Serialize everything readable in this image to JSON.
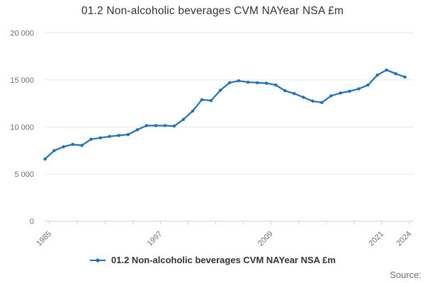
{
  "title": "01.2 Non-alcoholic beverages CVM NAYear NSA £m",
  "source_label": "Source:",
  "legend": {
    "label": "01.2 Non-alcoholic beverages CVM NAYear NSA £m"
  },
  "colors": {
    "line": "#1d70b8",
    "grid": "#e6e6e6",
    "axis": "#ccd6eb",
    "axis_label": "#6e6e6e",
    "text": "#333333"
  },
  "chart_data": {
    "type": "line",
    "title": "01.2 Non-alcoholic beverages CVM NAYear NSA £m",
    "xlabel": "",
    "ylabel": "",
    "x": [
      1985,
      1986,
      1987,
      1988,
      1989,
      1990,
      1991,
      1992,
      1993,
      1994,
      1995,
      1996,
      1997,
      1998,
      1999,
      2000,
      2001,
      2002,
      2003,
      2004,
      2005,
      2006,
      2007,
      2008,
      2009,
      2010,
      2011,
      2012,
      2013,
      2014,
      2015,
      2016,
      2017,
      2018,
      2019,
      2020,
      2021,
      2022,
      2023,
      2024
    ],
    "series": [
      {
        "name": "01.2 Non-alcoholic beverages CVM NAYear NSA £m",
        "values": [
          6600,
          7500,
          7900,
          8150,
          8050,
          8700,
          8850,
          9000,
          9100,
          9200,
          9700,
          10150,
          10150,
          10150,
          10100,
          10800,
          11700,
          12900,
          12800,
          13900,
          14700,
          14900,
          14750,
          14700,
          14650,
          14450,
          13850,
          13550,
          13150,
          12750,
          12600,
          13300,
          13600,
          13800,
          14050,
          14450,
          15500,
          16050,
          15650,
          15300
        ]
      }
    ],
    "ylim": [
      0,
      20000
    ],
    "yticks": [
      0,
      5000,
      10000,
      15000,
      20000
    ],
    "ytick_labels": [
      "0",
      "5 000",
      "10 000",
      "15 000",
      "20 000"
    ],
    "xticks_all": [
      1985,
      1988,
      1991,
      1994,
      1997,
      2000,
      2003,
      2006,
      2009,
      2012,
      2015,
      2018,
      2021,
      2024
    ],
    "xtick_labeled": [
      1985,
      1997,
      2009,
      2021,
      2024
    ],
    "grid": "horizontal",
    "legend_position": "bottom-center",
    "marker": "circle"
  }
}
